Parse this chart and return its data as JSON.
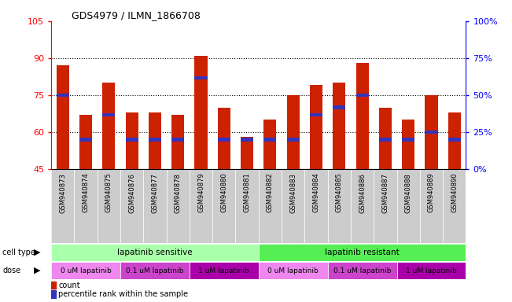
{
  "title": "GDS4979 / ILMN_1866708",
  "samples": [
    "GSM940873",
    "GSM940874",
    "GSM940875",
    "GSM940876",
    "GSM940877",
    "GSM940878",
    "GSM940879",
    "GSM940880",
    "GSM940881",
    "GSM940882",
    "GSM940883",
    "GSM940884",
    "GSM940885",
    "GSM940886",
    "GSM940887",
    "GSM940888",
    "GSM940889",
    "GSM940890"
  ],
  "bar_values": [
    87,
    67,
    80,
    68,
    68,
    67,
    91,
    70,
    58,
    65,
    75,
    79,
    80,
    88,
    70,
    65,
    75,
    68
  ],
  "blue_values": [
    75,
    57,
    67,
    57,
    57,
    57,
    82,
    57,
    57,
    57,
    57,
    67,
    70,
    75,
    57,
    57,
    60,
    57
  ],
  "ylim_left": [
    45,
    105
  ],
  "ylim_right": [
    0,
    100
  ],
  "yticks_left": [
    45,
    60,
    75,
    90,
    105
  ],
  "ytick_labels_left": [
    "45",
    "60",
    "75",
    "90",
    "105"
  ],
  "yticks_right_pos": [
    45,
    60,
    75,
    90,
    105
  ],
  "yticks_right_vals": [
    "0%",
    "25%",
    "50%",
    "75%",
    "100%"
  ],
  "bar_color": "#CC2200",
  "blue_color": "#3333BB",
  "cell_type_sensitive_label": "lapatinib sensitive",
  "cell_type_resistant_label": "lapatinib resistant",
  "sensitive_color": "#AAFFAA",
  "resistant_color": "#55EE55",
  "dose_labels": [
    "0 uM lapatinib",
    "0.1 uM lapatinib",
    "1 uM lapatinib",
    "0 uM lapatinib",
    "0.1 uM lapatinib",
    "1 uM lapatinib"
  ],
  "dose_colors": [
    "#EE88EE",
    "#CC44CC",
    "#AA00AA",
    "#EE88EE",
    "#CC44CC",
    "#AA00AA"
  ],
  "sensitive_count": 9,
  "resistant_count": 9,
  "legend_count_label": "count",
  "legend_percentile_label": "percentile rank within the sample",
  "gridlines": [
    60,
    75,
    90
  ]
}
